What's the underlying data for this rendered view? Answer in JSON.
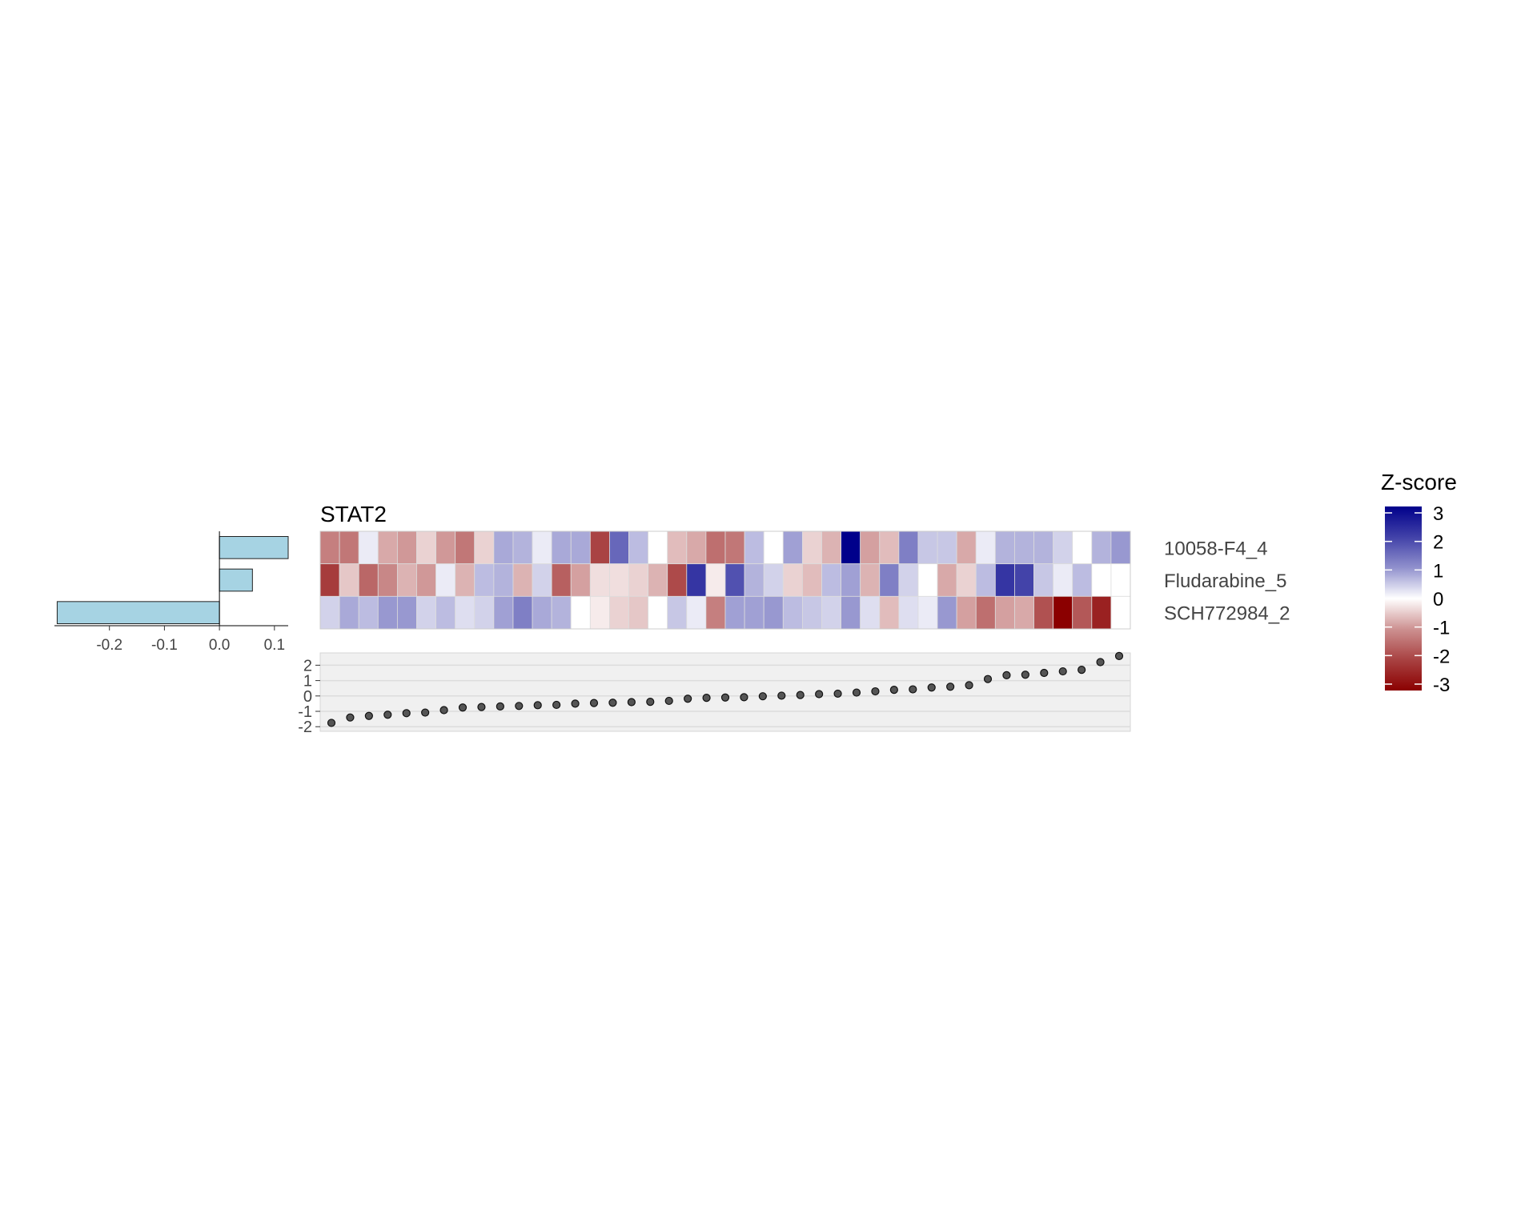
{
  "chart_data": [
    {
      "type": "bar",
      "orientation": "horizontal",
      "categories": [
        "10058-F4_4",
        "Fludarabine_5",
        "SCH772984_2"
      ],
      "values": [
        0.125,
        0.06,
        -0.295
      ],
      "xlim": [
        -0.3,
        0.125
      ],
      "xticks": [
        "-0.2",
        "-0.1",
        "0.0",
        "0.1"
      ],
      "bar_color": "#a6d3e3"
    },
    {
      "type": "heatmap",
      "title": "STAT2",
      "rows": [
        "10058-F4_4",
        "Fludarabine_5",
        "SCH772984_2"
      ],
      "n_columns": 42,
      "values": [
        [
          -1.2,
          -1.3,
          0.1,
          -0.7,
          -0.9,
          -0.3,
          -0.9,
          -1.3,
          -0.3,
          0.7,
          0.6,
          0.1,
          0.7,
          0.7,
          -2.0,
          1.5,
          0.5,
          0.0,
          -0.5,
          -0.7,
          -1.4,
          -1.3,
          0.5,
          0.0,
          0.8,
          -0.3,
          -0.6,
          3.0,
          -0.8,
          -0.5,
          1.2,
          0.4,
          0.4,
          -0.7,
          0.1,
          0.6,
          0.6,
          0.6,
          0.3,
          0.0,
          0.6,
          0.9
        ],
        [
          -2.1,
          -0.4,
          -1.5,
          -1.1,
          -0.6,
          -0.9,
          0.1,
          -0.6,
          0.5,
          0.6,
          -0.6,
          0.3,
          -1.6,
          -0.8,
          -0.2,
          -0.2,
          -0.3,
          -0.6,
          -1.9,
          2.2,
          -0.1,
          1.8,
          0.6,
          0.3,
          -0.3,
          -0.5,
          0.5,
          0.8,
          -0.6,
          1.2,
          0.3,
          0.0,
          -0.7,
          -0.3,
          0.5,
          2.2,
          2.0,
          0.4,
          0.1,
          0.5,
          0.0,
          0.0
        ],
        [
          0.3,
          0.7,
          0.5,
          0.9,
          0.9,
          0.3,
          0.5,
          0.2,
          0.3,
          0.8,
          1.2,
          0.7,
          0.6,
          0.0,
          -0.1,
          -0.3,
          -0.4,
          0.0,
          0.4,
          0.1,
          -1.2,
          0.8,
          0.8,
          0.9,
          0.5,
          0.4,
          0.3,
          0.9,
          0.2,
          -0.5,
          0.2,
          0.1,
          0.9,
          -0.8,
          -1.4,
          -0.8,
          -0.7,
          -1.8,
          -3.0,
          -1.7,
          -2.5,
          0.0
        ]
      ],
      "colorscale": {
        "title": "Z-score",
        "min": -3,
        "max": 3,
        "ticks": [
          "3",
          "2",
          "1",
          "0",
          "-1",
          "-2",
          "-3"
        ],
        "low_color": "#8b0000",
        "mid_color": "#ffffff",
        "high_color": "#00008b"
      }
    },
    {
      "type": "scatter",
      "y": [
        -1.75,
        -1.4,
        -1.3,
        -1.22,
        -1.12,
        -1.08,
        -0.92,
        -0.75,
        -0.72,
        -0.68,
        -0.65,
        -0.6,
        -0.58,
        -0.5,
        -0.46,
        -0.44,
        -0.4,
        -0.38,
        -0.32,
        -0.18,
        -0.12,
        -0.1,
        -0.08,
        -0.02,
        0.02,
        0.06,
        0.12,
        0.15,
        0.22,
        0.3,
        0.4,
        0.43,
        0.55,
        0.6,
        0.7,
        1.1,
        1.35,
        1.38,
        1.5,
        1.6,
        1.7,
        2.2,
        2.6
      ],
      "ylim": [
        -2.3,
        2.8
      ],
      "yticks": [
        "2",
        "1",
        "0",
        "-1",
        "-2"
      ],
      "point_color": "#333333",
      "panel_color": "#f0f0f0"
    }
  ]
}
